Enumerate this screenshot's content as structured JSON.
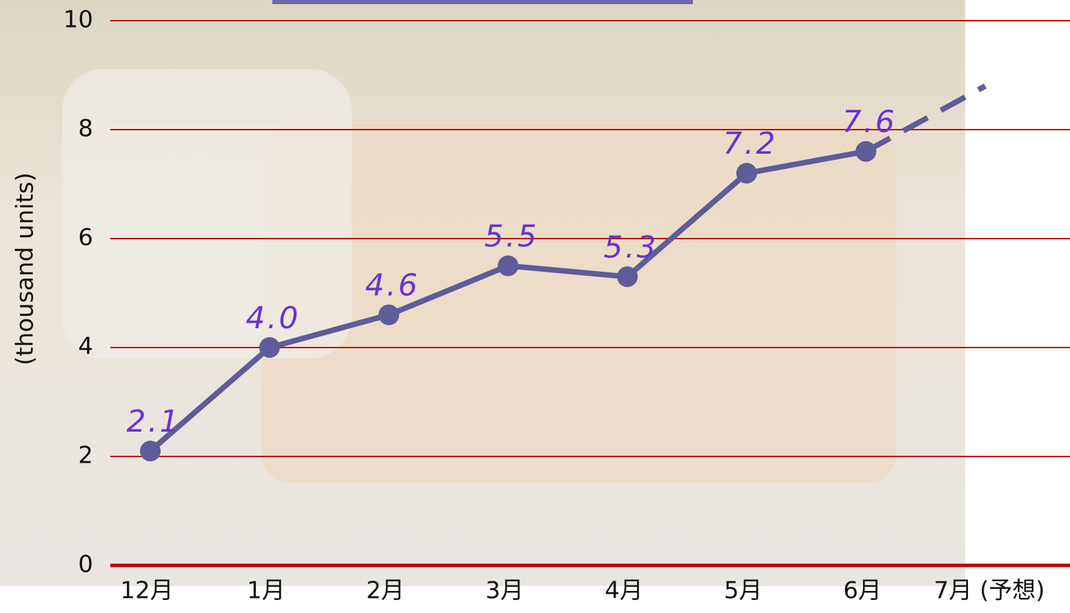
{
  "chart_data": {
    "type": "line",
    "y_label": "(thousand units)",
    "categories": [
      "12月",
      "1月",
      "2月",
      "3月",
      "4月",
      "5月",
      "6月",
      "7月 (予想)"
    ],
    "series": [
      {
        "color": "#5e5c9a",
        "values": [
          2.1,
          4.0,
          4.6,
          5.5,
          5.3,
          7.2,
          7.6,
          8.8
        ],
        "value_labels": [
          "2.1",
          "4.0",
          "4.6",
          "5.5",
          "5.3",
          "7.2",
          "7.6",
          null
        ]
      }
    ],
    "dashed_last_segment": true,
    "ylim": [
      0,
      10
    ],
    "yticks": [
      0,
      2,
      4,
      6,
      8,
      10
    ],
    "grid": true,
    "grid_color": "#c00000",
    "label_color": "#6a32d2"
  }
}
